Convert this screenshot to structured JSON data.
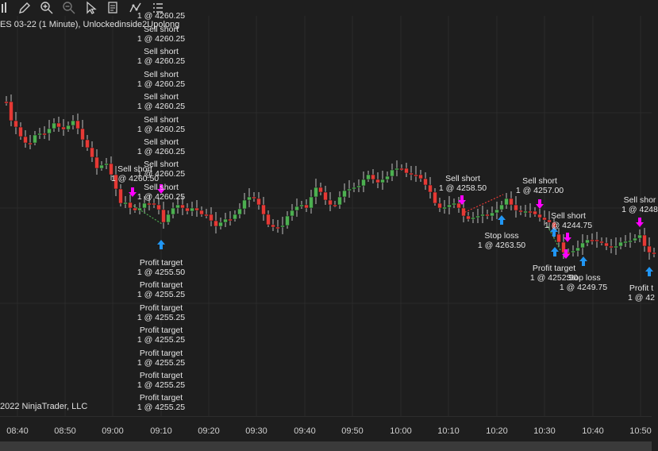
{
  "toolbar": {
    "items": [
      {
        "icon": "bar-type-icon"
      },
      {
        "icon": "draw-pencil-icon"
      },
      {
        "icon": "zoom-in-icon"
      },
      {
        "icon": "zoom-out-icon"
      },
      {
        "icon": "select-cursor-icon"
      },
      {
        "icon": "data-box-icon"
      },
      {
        "icon": "indicator-icon"
      },
      {
        "icon": "strategy-list-icon"
      }
    ]
  },
  "chart": {
    "title": "ES 03-22 (1 Minute), Unlockedinside2Upolong",
    "copyright": "2022 NinjaTrader, LLC",
    "colors": {
      "up": "#4caf50",
      "down": "#e53935",
      "wick": "#bdbdbd",
      "entry": "#ff00ff",
      "exit": "#2196f3",
      "grid": "#2b2b2b"
    }
  },
  "time_axis": {
    "labels": [
      "08:40",
      "08:50",
      "09:00",
      "09:10",
      "09:20",
      "09:30",
      "09:40",
      "09:50",
      "10:00",
      "10:10",
      "10:20",
      "10:30",
      "10:40",
      "10:50"
    ]
  },
  "chart_data": {
    "type": "candlestick",
    "x_axis_labels": [
      "08:40",
      "08:50",
      "09:00",
      "09:10",
      "09:20",
      "09:30",
      "09:40",
      "09:50",
      "10:00",
      "10:10",
      "10:20",
      "10:30",
      "10:40",
      "10:50"
    ],
    "trade_labels": {
      "top_stack": [
        {
          "action": "Sell short",
          "detail": "1 @ 4260.25"
        },
        {
          "action": "Sell short",
          "detail": "1 @ 4260.25"
        },
        {
          "action": "Sell short",
          "detail": "1 @ 4260.25"
        },
        {
          "action": "Sell short",
          "detail": "1 @ 4260.25"
        },
        {
          "action": "Sell short",
          "detail": "1 @ 4260.25"
        },
        {
          "action": "Sell short",
          "detail": "1 @ 4260.25"
        },
        {
          "action": "Sell short",
          "detail": "1 @ 4260.25"
        },
        {
          "action": "Sell short",
          "detail": "1 @ 4260.25"
        }
      ],
      "top_stack_head": "1 @ 4260.25",
      "sell_0905": {
        "action": "Sell short",
        "detail": "1 @ 4260.50"
      },
      "bottom_stack": [
        {
          "action": "Profit target",
          "detail": "1 @ 4255.50"
        },
        {
          "action": "Profit target",
          "detail": "1 @ 4255.25"
        },
        {
          "action": "Profit target",
          "detail": "1 @ 4255.25"
        },
        {
          "action": "Profit target",
          "detail": "1 @ 4255.25"
        },
        {
          "action": "Profit target",
          "detail": "1 @ 4255.25"
        },
        {
          "action": "Profit target",
          "detail": "1 @ 4255.25"
        },
        {
          "action": "Profit target",
          "detail": "1 @ 4255.25"
        }
      ],
      "sell_1013": {
        "action": "Sell short",
        "detail": "1 @ 4258.50"
      },
      "stop_1021": {
        "action": "Stop loss",
        "detail": "1 @ 4263.50"
      },
      "sell_1029": {
        "action": "Sell short",
        "detail": "1 @ 4257.00"
      },
      "sell_1035": {
        "action": "Sell short",
        "detail": "1 @ 4244.75"
      },
      "pt_1032": {
        "action": "Profit target",
        "detail": "1 @ 4252.50"
      },
      "stop_1038": {
        "action": "Stop loss",
        "detail": "1 @ 4249.75"
      },
      "sell_1050": {
        "action": "Sell shor",
        "detail": "1 @ 4248"
      },
      "pt_1051": {
        "action": "Profit t",
        "detail": "1 @ 42"
      }
    }
  }
}
